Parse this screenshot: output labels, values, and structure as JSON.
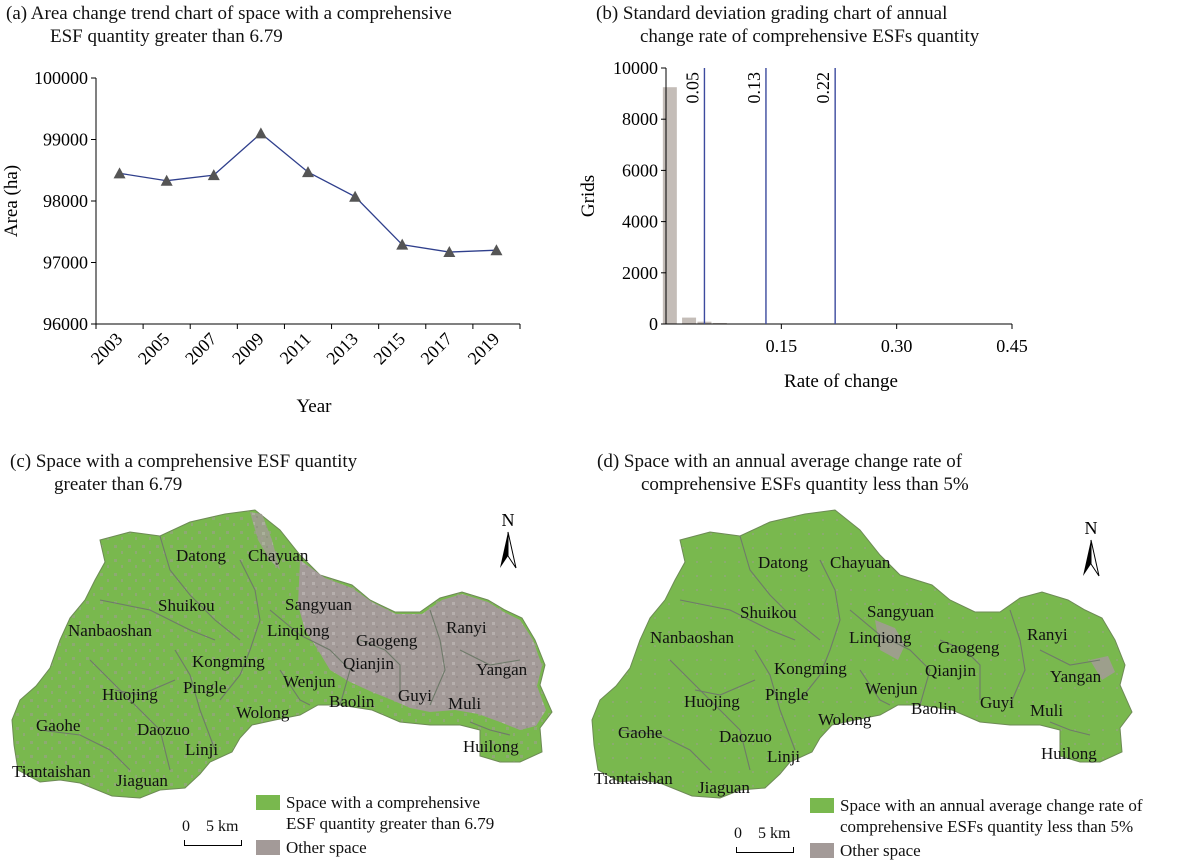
{
  "chart_data": [
    {
      "type": "line",
      "title": "(a) Area change trend chart of space with a comprehensive ESF quantity greater than 6.79",
      "title_line1": "(a) Area change trend chart of space with a comprehensive",
      "title_line2": "ESF quantity greater than 6.79",
      "xlabel": "Year",
      "ylabel": "Area (ha)",
      "categories": [
        "2003",
        "2005",
        "2007",
        "2009",
        "2011",
        "2013",
        "2015",
        "2017",
        "2019"
      ],
      "values": [
        98450,
        98330,
        98420,
        99100,
        98470,
        98070,
        97290,
        97170,
        97200
      ],
      "ylim": [
        96000,
        100000
      ],
      "yticks": [
        "96000",
        "97000",
        "98000",
        "99000",
        "100000"
      ],
      "series_color": "#2f3f8c",
      "marker_color": "#555555"
    },
    {
      "type": "bar",
      "title": "(b) Standard deviation grading chart of annual change rate of comprehensive ESFs quantity",
      "title_line1": "(b) Standard deviation grading chart of annual",
      "title_line2": "change rate of comprehensive ESFs quantity",
      "xlabel": "Rate of change",
      "ylabel": "Grids",
      "xlim": [
        0,
        0.45
      ],
      "ylim": [
        0,
        10000
      ],
      "xticks": [
        "0.15",
        "0.30",
        "0.45"
      ],
      "yticks": [
        "0",
        "2000",
        "4000",
        "6000",
        "8000",
        "10000"
      ],
      "bins": [
        {
          "x": 0.005,
          "value": 9250
        },
        {
          "x": 0.03,
          "value": 250
        },
        {
          "x": 0.05,
          "value": 90
        },
        {
          "x": 0.07,
          "value": 40
        },
        {
          "x": 0.09,
          "value": 15
        }
      ],
      "thresholds": [
        {
          "x": 0.05,
          "label": "0.05"
        },
        {
          "x": 0.13,
          "label": "0.13"
        },
        {
          "x": 0.22,
          "label": "0.22"
        }
      ],
      "bar_color": "#c4bdb8",
      "line_color": "#3c4a9e"
    }
  ],
  "maps": {
    "c": {
      "title_line1": "(c) Space with a comprehensive ESF quantity",
      "title_line2": "greater than 6.79",
      "legend_main_1": "Space with a comprehensive",
      "legend_main_2": "ESF quantity greater than 6.79",
      "legend_other": "Other space"
    },
    "d": {
      "title_line1": "(d) Space with an annual average change rate of",
      "title_line2": "comprehensive ESFs quantity less than 5%",
      "legend_main_1": "Space with an annual average change rate of",
      "legend_main_2": "comprehensive ESFs quantity less than 5%",
      "legend_other": "Other space"
    },
    "north_label": "N",
    "scale_zero": "0",
    "scale_label": "5 km",
    "green_color": "#79b84e",
    "grey_color": "#a39a98",
    "towns": [
      "Datong",
      "Chayuan",
      "Shuikou",
      "Sangyuan",
      "Nanbaoshan",
      "Linqiong",
      "Gaogeng",
      "Ranyi",
      "Kongming",
      "Qianjin",
      "Yangan",
      "Wenjun",
      "Pingle",
      "Huojing",
      "Baolin",
      "Guyi",
      "Muli",
      "Wolong",
      "Gaohe",
      "Daozuo",
      "Linji",
      "Huilong",
      "Tiantaishan",
      "Jiaguan"
    ]
  }
}
